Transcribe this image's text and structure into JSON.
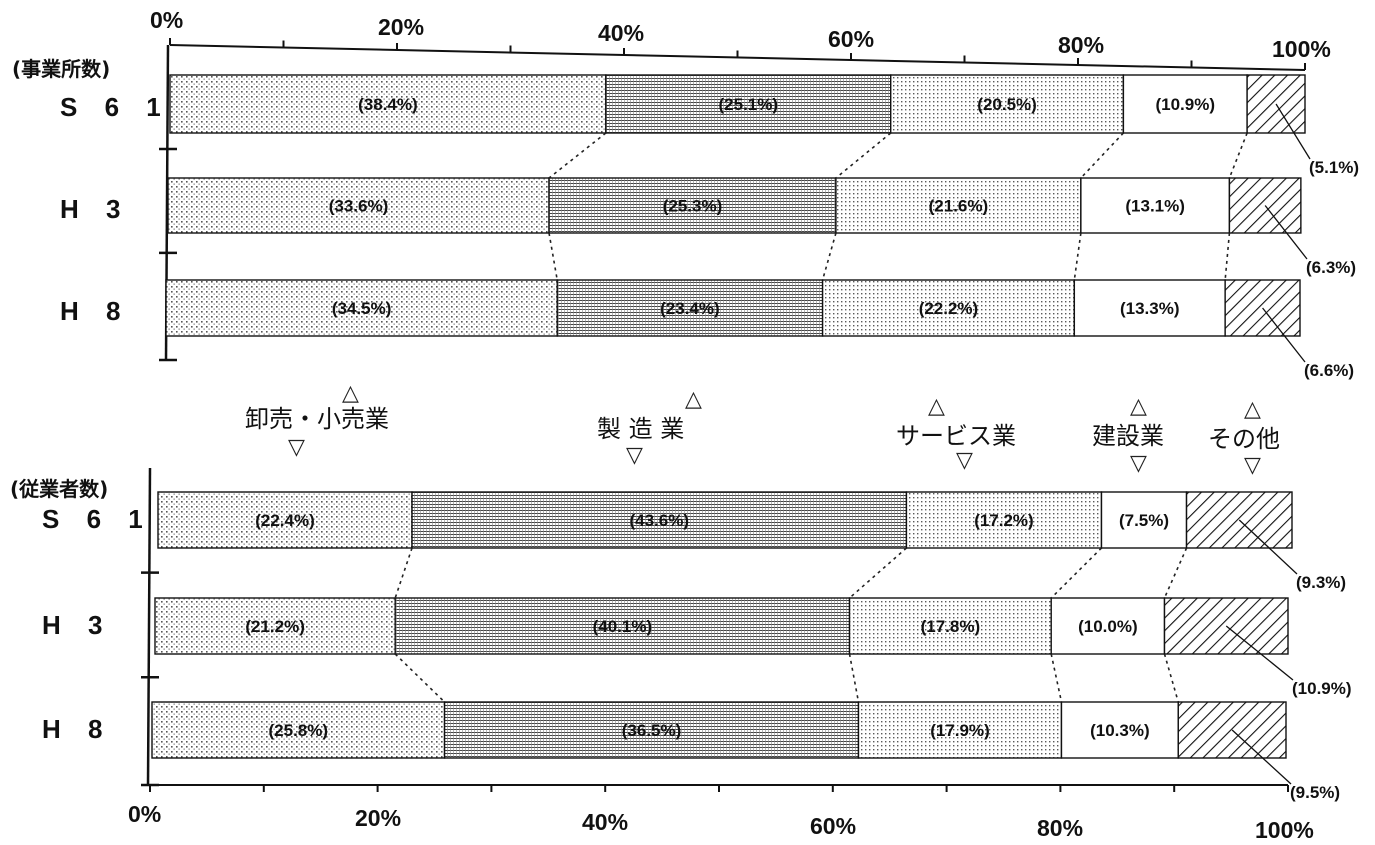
{
  "chart_data": {
    "type": "bar",
    "orientation": "horizontal",
    "stacked": true,
    "percent_stacked": true,
    "xlim": [
      0,
      100
    ],
    "x_ticks": [
      "0%",
      "20%",
      "40%",
      "60%",
      "80%",
      "100%"
    ],
    "grid": false,
    "series_names": [
      "卸売・小売業",
      "製 造 業",
      "サービス業",
      "建設業",
      "その他"
    ],
    "panels": [
      {
        "title": "(事業所数)",
        "categories": [
          "S 6 1",
          "H 3",
          "H 8"
        ],
        "series": [
          {
            "name": "卸売・小売業",
            "values": [
              38.4,
              33.6,
              34.5
            ]
          },
          {
            "name": "製 造 業",
            "values": [
              25.1,
              25.3,
              23.4
            ]
          },
          {
            "name": "サービス業",
            "values": [
              20.5,
              21.6,
              22.2
            ]
          },
          {
            "name": "建設業",
            "values": [
              10.9,
              13.1,
              13.3
            ]
          },
          {
            "name": "その他",
            "values": [
              5.1,
              6.3,
              6.6
            ]
          }
        ]
      },
      {
        "title": "(従業者数)",
        "categories": [
          "S 6 1",
          "H 3",
          "H 8"
        ],
        "series": [
          {
            "name": "卸売・小売業",
            "values": [
              22.4,
              21.2,
              25.8
            ]
          },
          {
            "name": "製 造 業",
            "values": [
              43.6,
              40.1,
              36.5
            ]
          },
          {
            "name": "サービス業",
            "values": [
              17.2,
              17.8,
              17.9
            ]
          },
          {
            "name": "建設業",
            "values": [
              7.5,
              10.0,
              10.3
            ]
          },
          {
            "name": "その他",
            "values": [
              9.3,
              10.9,
              9.5
            ]
          }
        ]
      }
    ],
    "value_labels": [
      [
        [
          "(38.4%)",
          "(25.1%)",
          "(20.5%)",
          "(10.9%)",
          "(5.1%)"
        ],
        [
          "(33.6%)",
          "(25.3%)",
          "(21.6%)",
          "(13.1%)",
          "(6.3%)"
        ],
        [
          "(34.5%)",
          "(23.4%)",
          "(22.2%)",
          "(13.3%)",
          "(6.6%)"
        ]
      ],
      [
        [
          "(22.4%)",
          "(43.6%)",
          "(17.2%)",
          "(7.5%)",
          "(9.3%)"
        ],
        [
          "(21.2%)",
          "(40.1%)",
          "(17.8%)",
          "(10.0%)",
          "(10.9%)"
        ],
        [
          "(25.8%)",
          "(36.5%)",
          "(17.9%)",
          "(10.3%)",
          "(9.5%)"
        ]
      ]
    ]
  }
}
